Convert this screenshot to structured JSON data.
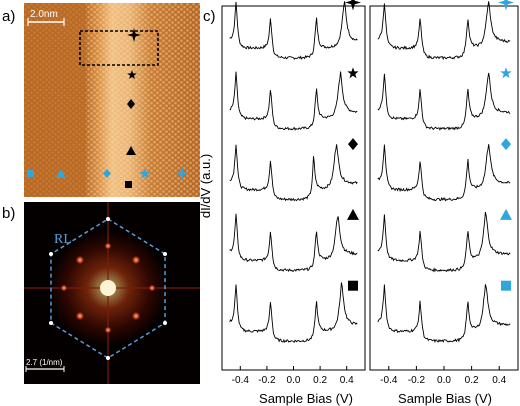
{
  "panels": {
    "a": {
      "label": "a)",
      "scale_bar": "2.0nm"
    },
    "b": {
      "label": "b)",
      "region_label": "RL",
      "scale_bar": "2.7 (1/nm)"
    },
    "c": {
      "label": "c)"
    }
  },
  "colors": {
    "blue_markers": "#2fa6dd",
    "black_markers": "#000000",
    "rl_hexagon": "#5b9bd5",
    "stm_base": "#c0702a",
    "stm_bright": "#f2c58c"
  },
  "markers": {
    "shapes": [
      "four-point-star",
      "five-point-star",
      "diamond",
      "triangle",
      "square"
    ]
  },
  "chart_data": {
    "type": "line",
    "title": "",
    "ylabel": "dI/dV (a.u.)",
    "xlabel": "Sample Bias (V)",
    "xlim": [
      -0.5,
      0.5
    ],
    "xticks": [
      "-0.4",
      "-0.2",
      "0.0",
      "0.2",
      "0.4"
    ],
    "y_ticks": "none",
    "panels": [
      {
        "name": "left",
        "marker_color": "black",
        "curves": [
          {
            "marker": "four-point-star",
            "peaks_V": [
              -0.43,
              -0.17,
              0.17,
              0.38
            ]
          },
          {
            "marker": "five-point-star",
            "peaks_V": [
              -0.43,
              -0.17,
              0.17,
              0.35
            ]
          },
          {
            "marker": "diamond",
            "peaks_V": [
              -0.43,
              -0.17,
              0.15,
              0.32
            ]
          },
          {
            "marker": "triangle",
            "peaks_V": [
              -0.43,
              -0.17,
              0.17,
              0.33
            ]
          },
          {
            "marker": "square",
            "peaks_V": [
              -0.43,
              -0.17,
              0.17,
              0.36
            ]
          }
        ]
      },
      {
        "name": "right",
        "marker_color": "blue",
        "curves": [
          {
            "marker": "four-point-star",
            "peaks_V": [
              -0.43,
              -0.17,
              0.17,
              0.32
            ]
          },
          {
            "marker": "five-point-star",
            "peaks_V": [
              -0.43,
              -0.17,
              0.17,
              0.32
            ]
          },
          {
            "marker": "diamond",
            "peaks_V": [
              -0.43,
              -0.17,
              0.17,
              0.32
            ]
          },
          {
            "marker": "triangle",
            "peaks_V": [
              -0.43,
              -0.17,
              0.17,
              0.3
            ]
          },
          {
            "marker": "square",
            "peaks_V": [
              -0.43,
              -0.17,
              0.17,
              0.3
            ]
          }
        ]
      }
    ]
  }
}
